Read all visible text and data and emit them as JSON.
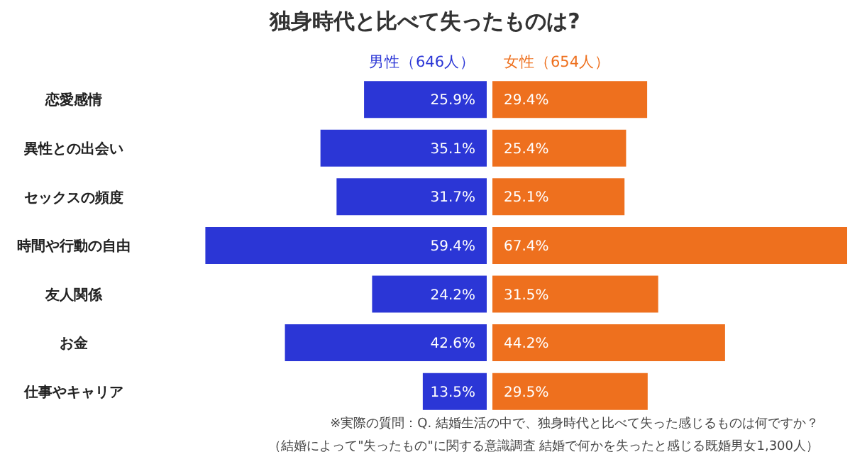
{
  "chart_data": [
    {
      "type": "bar",
      "orientation": "horizontal",
      "title": "独身時代と比べて失ったものは?",
      "legend": "top",
      "categories": [
        "恋愛感情",
        "異性との出会い",
        "セックスの頻度",
        "時間や行動の自由",
        "友人関係",
        "お金",
        "仕事やキャリア"
      ],
      "series": [
        {
          "name": "男性（646人）",
          "color": "#2b36d6",
          "values": [
            25.9,
            35.1,
            31.7,
            59.4,
            24.2,
            42.6,
            13.5
          ],
          "value_labels": [
            "25.9%",
            "35.1%",
            "31.7%",
            "59.4%",
            "24.2%",
            "42.6%",
            "13.5%"
          ]
        }
      ],
      "annotations": [
        "※実際の質問：Q. 結婚生活の中で、独身時代と比べて失った感じるものは何ですか？",
        "（結婚によって\"失ったもの\"に関する意識調査  結婚で何かを失ったと感じる既婚男女1,300人）"
      ]
    },
    {
      "type": "bar",
      "orientation": "horizontal",
      "legend": "top",
      "categories": [
        null,
        null,
        null,
        null,
        null,
        null,
        null
      ],
      "series": [
        {
          "name": "女性（654人）",
          "color": "#ee701e",
          "values": [
            29.4,
            25.4,
            25.1,
            67.4,
            31.5,
            44.2,
            29.5
          ],
          "value_labels": [
            "29.4%",
            "25.4%",
            "25.1%",
            "67.4%",
            "31.5%",
            "44.2%",
            "29.5%"
          ]
        }
      ]
    }
  ]
}
